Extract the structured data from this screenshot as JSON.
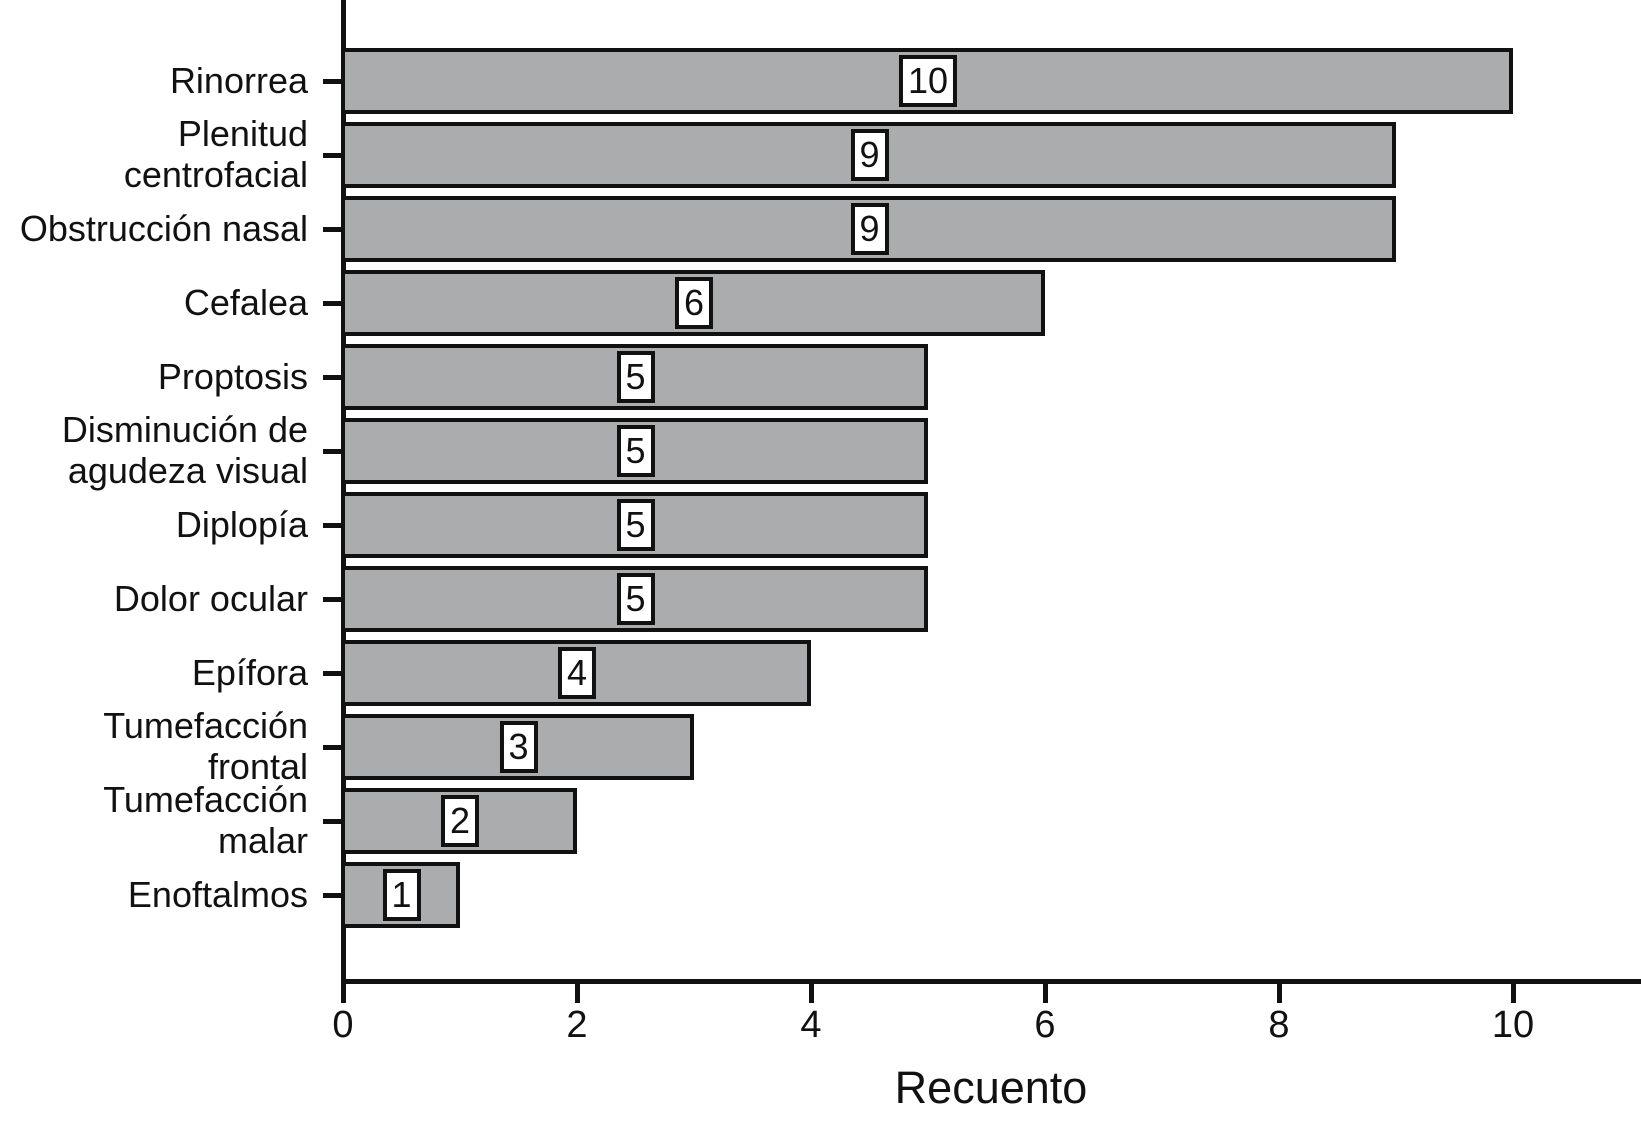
{
  "figure": {
    "background_color": "#FFFFFF",
    "axis_color": "#111111",
    "text_color": "#111111"
  },
  "chart_data": {
    "type": "bar",
    "orientation": "horizontal",
    "title": "",
    "xlabel": "Recuento",
    "ylabel": "",
    "categories": [
      "Rinorrea",
      "Plenitud\ncentrofacial",
      "Obstrucción nasal",
      "Cefalea",
      "Proptosis",
      "Disminución de\nagudeza visual",
      "Diplopía",
      "Dolor ocular",
      "Epífora",
      "Tumefacción\nfrontal",
      "Tumefacción\nmalar",
      "Enoftalmos"
    ],
    "values": [
      10,
      9,
      9,
      6,
      5,
      5,
      5,
      5,
      4,
      3,
      2,
      1
    ],
    "value_labels": [
      "10",
      "9",
      "9",
      "6",
      "5",
      "5",
      "5",
      "5",
      "4",
      "3",
      "2",
      "1"
    ],
    "xticks": [
      0,
      2,
      4,
      6,
      8,
      10
    ],
    "xlim": [
      0,
      11.1
    ],
    "grid": false,
    "legend": "none",
    "bar_fill_color": "#ABACAE",
    "bar_border_color": "#111111",
    "value_box_fill": "#FFFFFF",
    "value_box_border": "#111111"
  }
}
